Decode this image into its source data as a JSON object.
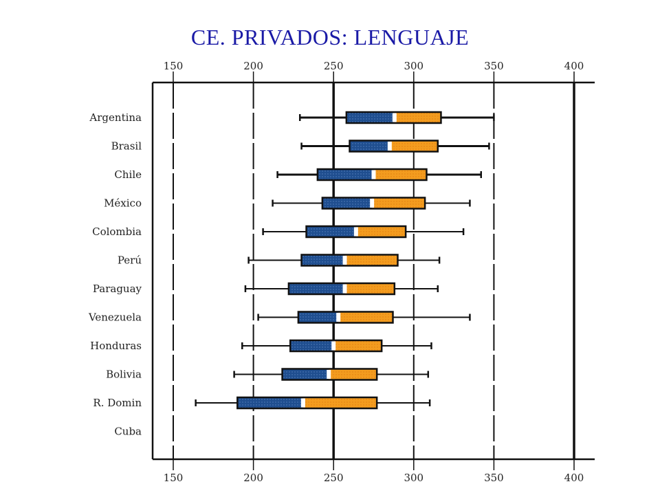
{
  "title": "CE. PRIVADOS: LENGUAJE",
  "chart_data": {
    "type": "box",
    "title": "CE. PRIVADOS: LENGUAJE",
    "xlim": [
      150,
      400
    ],
    "xticks": [
      "150",
      "200",
      "250",
      "300",
      "350",
      "400"
    ],
    "categories": [
      "Argentina",
      "Brasil",
      "Chile",
      "México",
      "Colombia",
      "Perú",
      "Paraguay",
      "Venezuela",
      "Honduras",
      "Bolivia",
      "R. Domin",
      "Cuba"
    ],
    "boxes": [
      {
        "category": "Argentina",
        "whisker_low": 229,
        "q1": 258,
        "median": 288,
        "q3": 317,
        "whisker_high": 350
      },
      {
        "category": "Brasil",
        "whisker_low": 230,
        "q1": 260,
        "median": 285,
        "q3": 315,
        "whisker_high": 347
      },
      {
        "category": "Chile",
        "whisker_low": 215,
        "q1": 240,
        "median": 275,
        "q3": 308,
        "whisker_high": 342
      },
      {
        "category": "México",
        "whisker_low": 212,
        "q1": 243,
        "median": 274,
        "q3": 307,
        "whisker_high": 335
      },
      {
        "category": "Colombia",
        "whisker_low": 206,
        "q1": 233,
        "median": 264,
        "q3": 295,
        "whisker_high": 331
      },
      {
        "category": "Perú",
        "whisker_low": 197,
        "q1": 230,
        "median": 257,
        "q3": 290,
        "whisker_high": 316
      },
      {
        "category": "Paraguay",
        "whisker_low": 195,
        "q1": 222,
        "median": 257,
        "q3": 288,
        "whisker_high": 315
      },
      {
        "category": "Venezuela",
        "whisker_low": 203,
        "q1": 228,
        "median": 253,
        "q3": 287,
        "whisker_high": 335
      },
      {
        "category": "Honduras",
        "whisker_low": 193,
        "q1": 223,
        "median": 250,
        "q3": 280,
        "whisker_high": 311
      },
      {
        "category": "Bolivia",
        "whisker_low": 188,
        "q1": 218,
        "median": 247,
        "q3": 277,
        "whisker_high": 309
      },
      {
        "category": "R. Domin",
        "whisker_low": 164,
        "q1": 190,
        "median": 231,
        "q3": 277,
        "whisker_high": 310
      },
      {
        "category": "Cuba",
        "whisker_low": null,
        "q1": null,
        "median": null,
        "q3": null,
        "whisker_high": null
      }
    ],
    "colors": {
      "lower_box": "#1f4e8f",
      "upper_box": "#f39c1f",
      "whisker": "#111111",
      "median": "#ffffff"
    },
    "grid": true
  }
}
